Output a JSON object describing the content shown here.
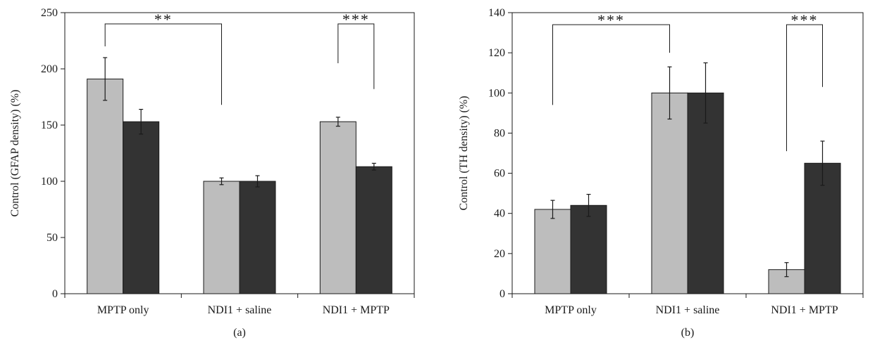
{
  "colors": {
    "series_light": "#bdbdbd",
    "series_dark": "#333333",
    "axis": "#1a1a1a"
  },
  "chart_data": [
    {
      "type": "bar",
      "panel_label": "(a)",
      "ylabel": "Control (GFAP density) (%)",
      "ylim": [
        0,
        250
      ],
      "yticks": [
        0,
        50,
        100,
        150,
        200,
        250
      ],
      "grid": false,
      "legend": "none",
      "categories": [
        "MPTP only",
        "NDI1 + saline",
        "NDI1 + MPTP"
      ],
      "series": [
        {
          "color": "#bdbdbd",
          "values": [
            191,
            100,
            153
          ],
          "errors": [
            19,
            3,
            4
          ]
        },
        {
          "color": "#333333",
          "values": [
            153,
            100,
            113
          ],
          "errors": [
            11,
            5,
            3
          ]
        }
      ],
      "annotations": [
        {
          "text": "**",
          "from": {
            "category": 0,
            "series": 0
          },
          "to": {
            "category": 1,
            "series": 0
          },
          "bracket_y": 240,
          "from_low": 220,
          "to_low": 168
        },
        {
          "text": "***",
          "from": {
            "category": 2,
            "series": 0
          },
          "to": {
            "category": 2,
            "series": 1
          },
          "bracket_y": 240,
          "from_low": 205,
          "to_low": 182
        }
      ]
    },
    {
      "type": "bar",
      "panel_label": "(b)",
      "ylabel": "Control (TH density) (%)",
      "ylim": [
        0,
        140
      ],
      "yticks": [
        0,
        20,
        40,
        60,
        80,
        100,
        120,
        140
      ],
      "grid": false,
      "legend": "none",
      "categories": [
        "MPTP only",
        "NDI1 + saline",
        "NDI1 + MPTP"
      ],
      "series": [
        {
          "color": "#bdbdbd",
          "values": [
            42,
            100,
            12
          ],
          "errors": [
            4.5,
            13,
            3.5
          ]
        },
        {
          "color": "#333333",
          "values": [
            44,
            100,
            65
          ],
          "errors": [
            5.5,
            15,
            11
          ]
        }
      ],
      "annotations": [
        {
          "text": "***",
          "from": {
            "category": 0,
            "series": 0
          },
          "to": {
            "category": 1,
            "series": 0
          },
          "bracket_y": 134,
          "from_low": 94,
          "to_low": 120
        },
        {
          "text": "***",
          "from": {
            "category": 2,
            "series": 0
          },
          "to": {
            "category": 2,
            "series": 1
          },
          "bracket_y": 134,
          "from_low": 71,
          "to_low": 103
        }
      ]
    }
  ]
}
